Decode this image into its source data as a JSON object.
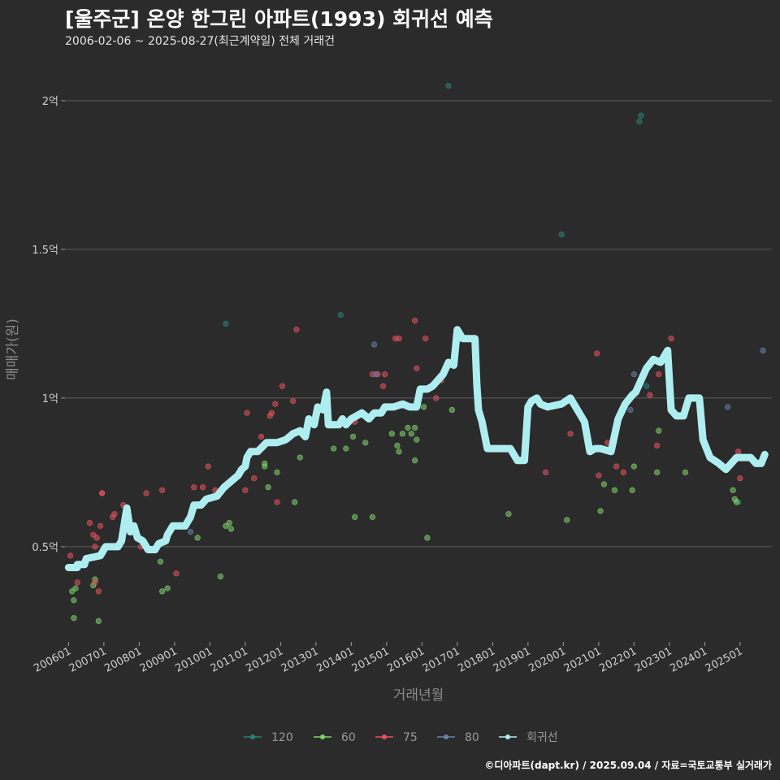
{
  "header": {
    "title": "[울주군] 온양 한그린 아파트(1993) 회귀선 예측",
    "subtitle": "2006-02-06 ~ 2025-08-27(최근계약일) 전체 거래건"
  },
  "footer": {
    "caption": "©디아파트(dapt.kr) / 2025.09.04 / 자료=국토교통부 실거래가"
  },
  "colors": {
    "background": "#2b2b2c",
    "grid": "#5c5c5c",
    "s120": "#2f7f76",
    "s60": "#7fd36b",
    "s75": "#e8525e",
    "s80": "#6b7fa8",
    "regression": "#aeeef0"
  },
  "chart_data": {
    "type": "scatter",
    "title": "[울주군] 온양 한그린 아파트(1993) 회귀선 예측",
    "xlabel": "거래년월",
    "ylabel": "매매가(원)",
    "ylim": [
      0.18,
      2.12
    ],
    "xlim": [
      2005.9,
      2025.9
    ],
    "y_ticks": [
      {
        "value": 0.5,
        "label": "0.5억"
      },
      {
        "value": 1.0,
        "label": "1억"
      },
      {
        "value": 1.5,
        "label": "1.5억"
      },
      {
        "value": 2.0,
        "label": "2억"
      }
    ],
    "x_ticks": [
      {
        "value": 2006.0,
        "label": "200601"
      },
      {
        "value": 2007.0,
        "label": "200701"
      },
      {
        "value": 2008.0,
        "label": "200801"
      },
      {
        "value": 2009.0,
        "label": "200901"
      },
      {
        "value": 2010.0,
        "label": "201001"
      },
      {
        "value": 2011.0,
        "label": "201101"
      },
      {
        "value": 2012.0,
        "label": "201201"
      },
      {
        "value": 2013.0,
        "label": "201301"
      },
      {
        "value": 2014.0,
        "label": "201401"
      },
      {
        "value": 2015.0,
        "label": "201501"
      },
      {
        "value": 2016.0,
        "label": "201601"
      },
      {
        "value": 2017.0,
        "label": "201701"
      },
      {
        "value": 2018.0,
        "label": "201801"
      },
      {
        "value": 2019.0,
        "label": "201901"
      },
      {
        "value": 2020.0,
        "label": "202001"
      },
      {
        "value": 2021.0,
        "label": "202101"
      },
      {
        "value": 2022.0,
        "label": "202201"
      },
      {
        "value": 2023.0,
        "label": "202301"
      },
      {
        "value": 2024.0,
        "label": "202401"
      },
      {
        "value": 2025.0,
        "label": "202501"
      }
    ],
    "legend": {
      "position": "bottom",
      "entries": [
        {
          "key": "s120",
          "label": "120"
        },
        {
          "key": "s60",
          "label": "60"
        },
        {
          "key": "s75",
          "label": "75"
        },
        {
          "key": "s80",
          "label": "80"
        },
        {
          "key": "regression",
          "label": "회귀선"
        }
      ]
    },
    "series": [
      {
        "name": "120",
        "key": "s120",
        "points": [
          [
            2016.75,
            2.05
          ],
          [
            2019.95,
            1.55
          ],
          [
            2022.15,
            1.93
          ],
          [
            2022.2,
            1.95
          ],
          [
            2013.7,
            1.28
          ],
          [
            2010.45,
            1.25
          ],
          [
            2022.35,
            1.04
          ],
          [
            2024.95,
            0.65
          ]
        ]
      },
      {
        "name": "60",
        "key": "s60",
        "points": [
          [
            2006.1,
            0.35
          ],
          [
            2006.15,
            0.32
          ],
          [
            2006.2,
            0.36
          ],
          [
            2006.15,
            0.26
          ],
          [
            2006.7,
            0.37
          ],
          [
            2006.75,
            0.39
          ],
          [
            2006.85,
            0.25
          ],
          [
            2008.6,
            0.45
          ],
          [
            2008.65,
            0.35
          ],
          [
            2008.8,
            0.36
          ],
          [
            2009.65,
            0.53
          ],
          [
            2010.3,
            0.4
          ],
          [
            2010.45,
            0.57
          ],
          [
            2010.55,
            0.58
          ],
          [
            2010.6,
            0.56
          ],
          [
            2011.55,
            0.78
          ],
          [
            2011.55,
            0.77
          ],
          [
            2011.65,
            0.7
          ],
          [
            2011.9,
            0.75
          ],
          [
            2012.4,
            0.65
          ],
          [
            2012.55,
            0.8
          ],
          [
            2013.5,
            0.83
          ],
          [
            2013.85,
            0.83
          ],
          [
            2014.05,
            0.87
          ],
          [
            2014.1,
            0.6
          ],
          [
            2014.4,
            0.85
          ],
          [
            2014.6,
            0.6
          ],
          [
            2015.15,
            0.88
          ],
          [
            2015.3,
            0.84
          ],
          [
            2015.35,
            0.82
          ],
          [
            2015.45,
            0.88
          ],
          [
            2015.6,
            0.9
          ],
          [
            2015.7,
            0.88
          ],
          [
            2015.8,
            0.9
          ],
          [
            2015.8,
            0.79
          ],
          [
            2015.85,
            0.86
          ],
          [
            2016.05,
            0.97
          ],
          [
            2016.15,
            0.53
          ],
          [
            2016.85,
            0.96
          ],
          [
            2018.45,
            0.61
          ],
          [
            2020.1,
            0.59
          ],
          [
            2021.05,
            0.62
          ],
          [
            2021.15,
            0.71
          ],
          [
            2021.45,
            0.69
          ],
          [
            2021.95,
            0.69
          ],
          [
            2022.0,
            0.77
          ],
          [
            2022.65,
            0.75
          ],
          [
            2022.7,
            0.89
          ],
          [
            2023.45,
            0.75
          ],
          [
            2024.8,
            0.69
          ],
          [
            2024.85,
            0.66
          ],
          [
            2024.9,
            0.65
          ]
        ]
      },
      {
        "name": "75",
        "key": "s75",
        "points": [
          [
            2006.05,
            0.47
          ],
          [
            2006.25,
            0.38
          ],
          [
            2006.45,
            0.45
          ],
          [
            2006.6,
            0.58
          ],
          [
            2006.7,
            0.54
          ],
          [
            2006.75,
            0.5
          ],
          [
            2006.75,
            0.38
          ],
          [
            2006.8,
            0.53
          ],
          [
            2006.85,
            0.35
          ],
          [
            2006.9,
            0.57
          ],
          [
            2006.95,
            0.68
          ],
          [
            2006.95,
            0.68
          ],
          [
            2007.25,
            0.6
          ],
          [
            2007.3,
            0.61
          ],
          [
            2007.55,
            0.64
          ],
          [
            2008.05,
            0.5
          ],
          [
            2008.2,
            0.68
          ],
          [
            2008.65,
            0.69
          ],
          [
            2009.05,
            0.41
          ],
          [
            2009.55,
            0.7
          ],
          [
            2009.8,
            0.7
          ],
          [
            2009.95,
            0.77
          ],
          [
            2010.15,
            0.69
          ],
          [
            2010.45,
            0.7
          ],
          [
            2011.0,
            0.69
          ],
          [
            2011.05,
            0.95
          ],
          [
            2011.25,
            0.73
          ],
          [
            2011.45,
            0.87
          ],
          [
            2011.7,
            0.94
          ],
          [
            2011.75,
            0.95
          ],
          [
            2011.85,
            0.98
          ],
          [
            2011.9,
            0.65
          ],
          [
            2012.05,
            1.04
          ],
          [
            2012.35,
            0.99
          ],
          [
            2012.45,
            1.23
          ],
          [
            2013.3,
            0.98
          ],
          [
            2014.1,
            0.92
          ],
          [
            2014.2,
            0.94
          ],
          [
            2014.6,
            1.08
          ],
          [
            2014.75,
            1.08
          ],
          [
            2014.9,
            1.04
          ],
          [
            2014.95,
            1.08
          ],
          [
            2015.25,
            1.2
          ],
          [
            2015.35,
            1.2
          ],
          [
            2015.8,
            1.26
          ],
          [
            2015.85,
            1.1
          ],
          [
            2016.1,
            1.2
          ],
          [
            2016.4,
            1.0
          ],
          [
            2016.55,
            1.06
          ],
          [
            2020.2,
            0.88
          ],
          [
            2019.5,
            0.75
          ],
          [
            2020.95,
            1.15
          ],
          [
            2021.0,
            0.74
          ],
          [
            2021.5,
            0.77
          ],
          [
            2021.7,
            0.75
          ],
          [
            2022.45,
            1.01
          ],
          [
            2022.7,
            1.08
          ],
          [
            2023.05,
            1.2
          ],
          [
            2022.65,
            0.84
          ],
          [
            2024.95,
            0.82
          ],
          [
            2025.0,
            0.73
          ],
          [
            2021.25,
            0.85
          ]
        ]
      },
      {
        "name": "80",
        "key": "s80",
        "points": [
          [
            2014.65,
            1.18
          ],
          [
            2014.7,
            1.08
          ],
          [
            2024.65,
            0.97
          ],
          [
            2025.65,
            1.16
          ],
          [
            2009.45,
            0.55
          ],
          [
            2021.9,
            0.96
          ],
          [
            2022.0,
            1.08
          ]
        ]
      },
      {
        "name": "회귀선",
        "key": "regression",
        "kind": "line",
        "points": [
          [
            2006.0,
            0.43
          ],
          [
            2006.25,
            0.43
          ],
          [
            2006.25,
            0.44
          ],
          [
            2006.45,
            0.44
          ],
          [
            2006.5,
            0.46
          ],
          [
            2006.9,
            0.47
          ],
          [
            2007.05,
            0.5
          ],
          [
            2007.4,
            0.5
          ],
          [
            2007.5,
            0.52
          ],
          [
            2007.65,
            0.63
          ],
          [
            2007.75,
            0.55
          ],
          [
            2007.85,
            0.57
          ],
          [
            2007.95,
            0.53
          ],
          [
            2008.1,
            0.52
          ],
          [
            2008.25,
            0.49
          ],
          [
            2008.45,
            0.49
          ],
          [
            2008.55,
            0.51
          ],
          [
            2008.75,
            0.52
          ],
          [
            2008.8,
            0.54
          ],
          [
            2008.95,
            0.57
          ],
          [
            2009.3,
            0.57
          ],
          [
            2009.45,
            0.6
          ],
          [
            2009.55,
            0.64
          ],
          [
            2009.75,
            0.64
          ],
          [
            2009.9,
            0.66
          ],
          [
            2010.2,
            0.67
          ],
          [
            2010.4,
            0.7
          ],
          [
            2010.8,
            0.74
          ],
          [
            2010.9,
            0.76
          ],
          [
            2011.0,
            0.77
          ],
          [
            2011.05,
            0.8
          ],
          [
            2011.15,
            0.82
          ],
          [
            2011.35,
            0.82
          ],
          [
            2011.6,
            0.85
          ],
          [
            2011.9,
            0.85
          ],
          [
            2012.15,
            0.86
          ],
          [
            2012.35,
            0.88
          ],
          [
            2012.55,
            0.89
          ],
          [
            2012.7,
            0.87
          ],
          [
            2012.8,
            0.93
          ],
          [
            2012.95,
            0.91
          ],
          [
            2013.05,
            0.97
          ],
          [
            2013.2,
            0.96
          ],
          [
            2013.3,
            1.02
          ],
          [
            2013.35,
            0.91
          ],
          [
            2013.65,
            0.91
          ],
          [
            2013.75,
            0.93
          ],
          [
            2013.85,
            0.91
          ],
          [
            2014.0,
            0.93
          ],
          [
            2014.3,
            0.95
          ],
          [
            2014.5,
            0.93
          ],
          [
            2014.65,
            0.95
          ],
          [
            2014.85,
            0.95
          ],
          [
            2014.95,
            0.97
          ],
          [
            2015.2,
            0.97
          ],
          [
            2015.45,
            0.98
          ],
          [
            2015.65,
            0.97
          ],
          [
            2015.85,
            0.97
          ],
          [
            2015.95,
            1.03
          ],
          [
            2016.15,
            1.03
          ],
          [
            2016.3,
            1.04
          ],
          [
            2016.6,
            1.08
          ],
          [
            2016.75,
            1.12
          ],
          [
            2016.9,
            1.11
          ],
          [
            2017.0,
            1.23
          ],
          [
            2017.15,
            1.2
          ],
          [
            2017.3,
            1.2
          ],
          [
            2017.5,
            1.2
          ],
          [
            2017.55,
            1.05
          ],
          [
            2017.6,
            0.96
          ],
          [
            2017.7,
            0.92
          ],
          [
            2017.85,
            0.83
          ],
          [
            2018.5,
            0.83
          ],
          [
            2018.7,
            0.79
          ],
          [
            2018.9,
            0.79
          ],
          [
            2019.0,
            0.97
          ],
          [
            2019.1,
            0.99
          ],
          [
            2019.25,
            1.0
          ],
          [
            2019.35,
            0.98
          ],
          [
            2019.55,
            0.97
          ],
          [
            2019.95,
            0.98
          ],
          [
            2020.2,
            1.0
          ],
          [
            2020.45,
            0.95
          ],
          [
            2020.6,
            0.92
          ],
          [
            2020.75,
            0.82
          ],
          [
            2020.9,
            0.83
          ],
          [
            2021.05,
            0.83
          ],
          [
            2021.35,
            0.82
          ],
          [
            2021.55,
            0.93
          ],
          [
            2021.75,
            0.98
          ],
          [
            2021.95,
            1.01
          ],
          [
            2022.05,
            1.02
          ],
          [
            2022.2,
            1.06
          ],
          [
            2022.35,
            1.1
          ],
          [
            2022.55,
            1.13
          ],
          [
            2022.75,
            1.12
          ],
          [
            2022.95,
            1.16
          ],
          [
            2023.05,
            0.96
          ],
          [
            2023.2,
            0.94
          ],
          [
            2023.4,
            0.94
          ],
          [
            2023.55,
            1.0
          ],
          [
            2023.85,
            1.0
          ],
          [
            2023.95,
            0.86
          ],
          [
            2024.15,
            0.8
          ],
          [
            2024.4,
            0.78
          ],
          [
            2024.6,
            0.76
          ],
          [
            2024.75,
            0.78
          ],
          [
            2024.9,
            0.8
          ],
          [
            2025.3,
            0.8
          ],
          [
            2025.45,
            0.78
          ],
          [
            2025.6,
            0.78
          ],
          [
            2025.7,
            0.81
          ]
        ]
      }
    ]
  }
}
